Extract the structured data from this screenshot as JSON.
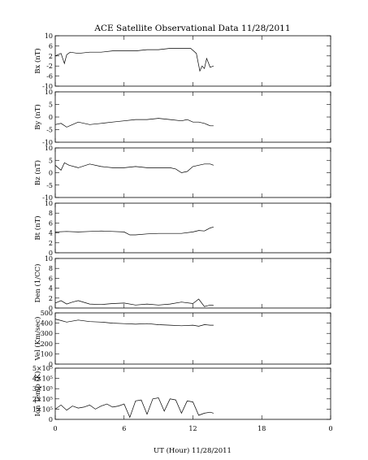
{
  "chart_data": {
    "type": "line",
    "title": "ACE Satellite Observational Data   11/28/2011",
    "xlabel": "UT (Hour)   11/28/2011",
    "xlim": [
      0,
      24
    ],
    "x_ticks": [
      "0",
      "6",
      "12",
      "18",
      "0"
    ],
    "x_tick_values": [
      0,
      6,
      12,
      18,
      24
    ],
    "panels": [
      {
        "name": "bx",
        "ylabel": "Bx (nT)",
        "ylim": [
          -10,
          10
        ],
        "yticks": [
          "10",
          "6",
          "2",
          "-2",
          "-6",
          "-10"
        ],
        "ytick_values": [
          10,
          6,
          2,
          -2,
          -6,
          -10
        ],
        "x": [
          0,
          0.5,
          0.8,
          1,
          1.3,
          2,
          3,
          4,
          5,
          6,
          7,
          8,
          9,
          10,
          11,
          11.8,
          12.3,
          12.6,
          12.8,
          13,
          13.2,
          13.5,
          13.8
        ],
        "y": [
          2,
          3,
          -1,
          2.5,
          3.5,
          3,
          3.5,
          3.5,
          4,
          4,
          4,
          4.5,
          4.5,
          5,
          5,
          5,
          3,
          -4,
          -2,
          -3,
          1,
          -2.5,
          -2
        ]
      },
      {
        "name": "by",
        "ylabel": "By (nT)",
        "ylim": [
          -10,
          10
        ],
        "yticks": [
          "10",
          "5",
          "0",
          "-5",
          "-10"
        ],
        "ytick_values": [
          10,
          5,
          0,
          -5,
          -10
        ],
        "x": [
          0,
          0.5,
          1,
          1.5,
          2,
          3,
          4,
          5,
          6,
          7,
          8,
          9,
          10,
          11,
          11.5,
          12,
          12.5,
          13,
          13.5,
          13.8
        ],
        "y": [
          -3,
          -2.5,
          -4,
          -3,
          -2,
          -3,
          -2.5,
          -2,
          -1.5,
          -1,
          -1,
          -0.5,
          -1,
          -1.5,
          -1,
          -2,
          -2,
          -2.5,
          -3.5,
          -3.5
        ]
      },
      {
        "name": "bz",
        "ylabel": "Bz (nT)",
        "ylim": [
          -10,
          10
        ],
        "yticks": [
          "10",
          "5",
          "0",
          "-5",
          "-10"
        ],
        "ytick_values": [
          10,
          5,
          0,
          -5,
          -10
        ],
        "x": [
          0,
          0.5,
          0.8,
          1.2,
          2,
          3,
          4,
          5,
          6,
          7,
          8,
          9,
          10,
          10.5,
          11,
          11.5,
          12,
          12.5,
          13,
          13.5,
          13.8
        ],
        "y": [
          3,
          1,
          4,
          3,
          2,
          3.5,
          2.5,
          2,
          2,
          2.5,
          2,
          2,
          2,
          1.5,
          0,
          0.5,
          2.5,
          3,
          3.5,
          3.5,
          3
        ]
      },
      {
        "name": "bt",
        "ylabel": "Bt (nT)",
        "ylim": [
          0,
          10
        ],
        "yticks": [
          "10",
          "8",
          "6",
          "4",
          "2",
          "0"
        ],
        "ytick_values": [
          10,
          8,
          6,
          4,
          2,
          0
        ],
        "x": [
          0,
          1,
          2,
          3,
          4,
          5,
          6,
          6.5,
          7,
          8,
          9,
          10,
          11,
          12,
          12.5,
          13,
          13.5,
          13.8
        ],
        "y": [
          4.2,
          4.3,
          4.2,
          4.3,
          4.4,
          4.3,
          4.2,
          3.6,
          3.6,
          3.8,
          3.9,
          3.9,
          3.9,
          4.2,
          4.5,
          4.4,
          5,
          5.2
        ]
      },
      {
        "name": "den",
        "ylabel": "Den (1/CC)",
        "ylim": [
          0,
          10
        ],
        "yticks": [
          "10",
          "8",
          "6",
          "4",
          "2",
          "0"
        ],
        "ytick_values": [
          10,
          8,
          6,
          4,
          2,
          0
        ],
        "x": [
          0,
          0.5,
          1,
          1.5,
          2,
          3,
          4,
          5,
          6,
          7,
          8,
          9,
          10,
          11,
          12,
          12.5,
          13,
          13.5,
          13.8
        ],
        "y": [
          1,
          1.5,
          0.8,
          1.2,
          1.5,
          0.8,
          0.7,
          0.9,
          1,
          0.6,
          0.8,
          0.6,
          0.8,
          1.2,
          0.9,
          1.8,
          0.3,
          0.6,
          0.5
        ]
      },
      {
        "name": "vel",
        "ylabel": "Vel (Km/sec)",
        "ylim": [
          0,
          500
        ],
        "yticks": [
          "500",
          "400",
          "300",
          "200",
          "100",
          "0"
        ],
        "ytick_values": [
          500,
          400,
          300,
          200,
          100,
          0
        ],
        "x": [
          0,
          0.5,
          1,
          2,
          3,
          4,
          5,
          6,
          7,
          8,
          9,
          10,
          11,
          12,
          12.5,
          13,
          13.5,
          13.8
        ],
        "y": [
          440,
          425,
          410,
          430,
          415,
          410,
          400,
          395,
          390,
          395,
          385,
          380,
          375,
          380,
          370,
          385,
          380,
          380
        ]
      },
      {
        "name": "temp",
        "ylabel": "Ion Temp (K)",
        "ylim": [
          0,
          500000
        ],
        "yticks": [
          "5×10⁵",
          "4×10⁵",
          "3×10⁵",
          "2×10⁵",
          "1×10⁵",
          "0"
        ],
        "ytick_values": [
          500000,
          400000,
          300000,
          200000,
          100000,
          0
        ],
        "x": [
          0,
          0.5,
          1,
          1.5,
          2,
          2.5,
          3,
          3.5,
          4,
          4.5,
          5,
          5.5,
          6,
          6.5,
          7,
          7.5,
          8,
          8.5,
          9,
          9.5,
          10,
          10.5,
          11,
          11.5,
          12,
          12.5,
          13,
          13.5,
          13.8
        ],
        "y": [
          100000,
          140000,
          90000,
          130000,
          110000,
          120000,
          140000,
          100000,
          130000,
          150000,
          120000,
          130000,
          150000,
          20000,
          180000,
          190000,
          50000,
          200000,
          210000,
          80000,
          200000,
          190000,
          60000,
          180000,
          170000,
          40000,
          60000,
          70000,
          60000
        ]
      }
    ]
  }
}
